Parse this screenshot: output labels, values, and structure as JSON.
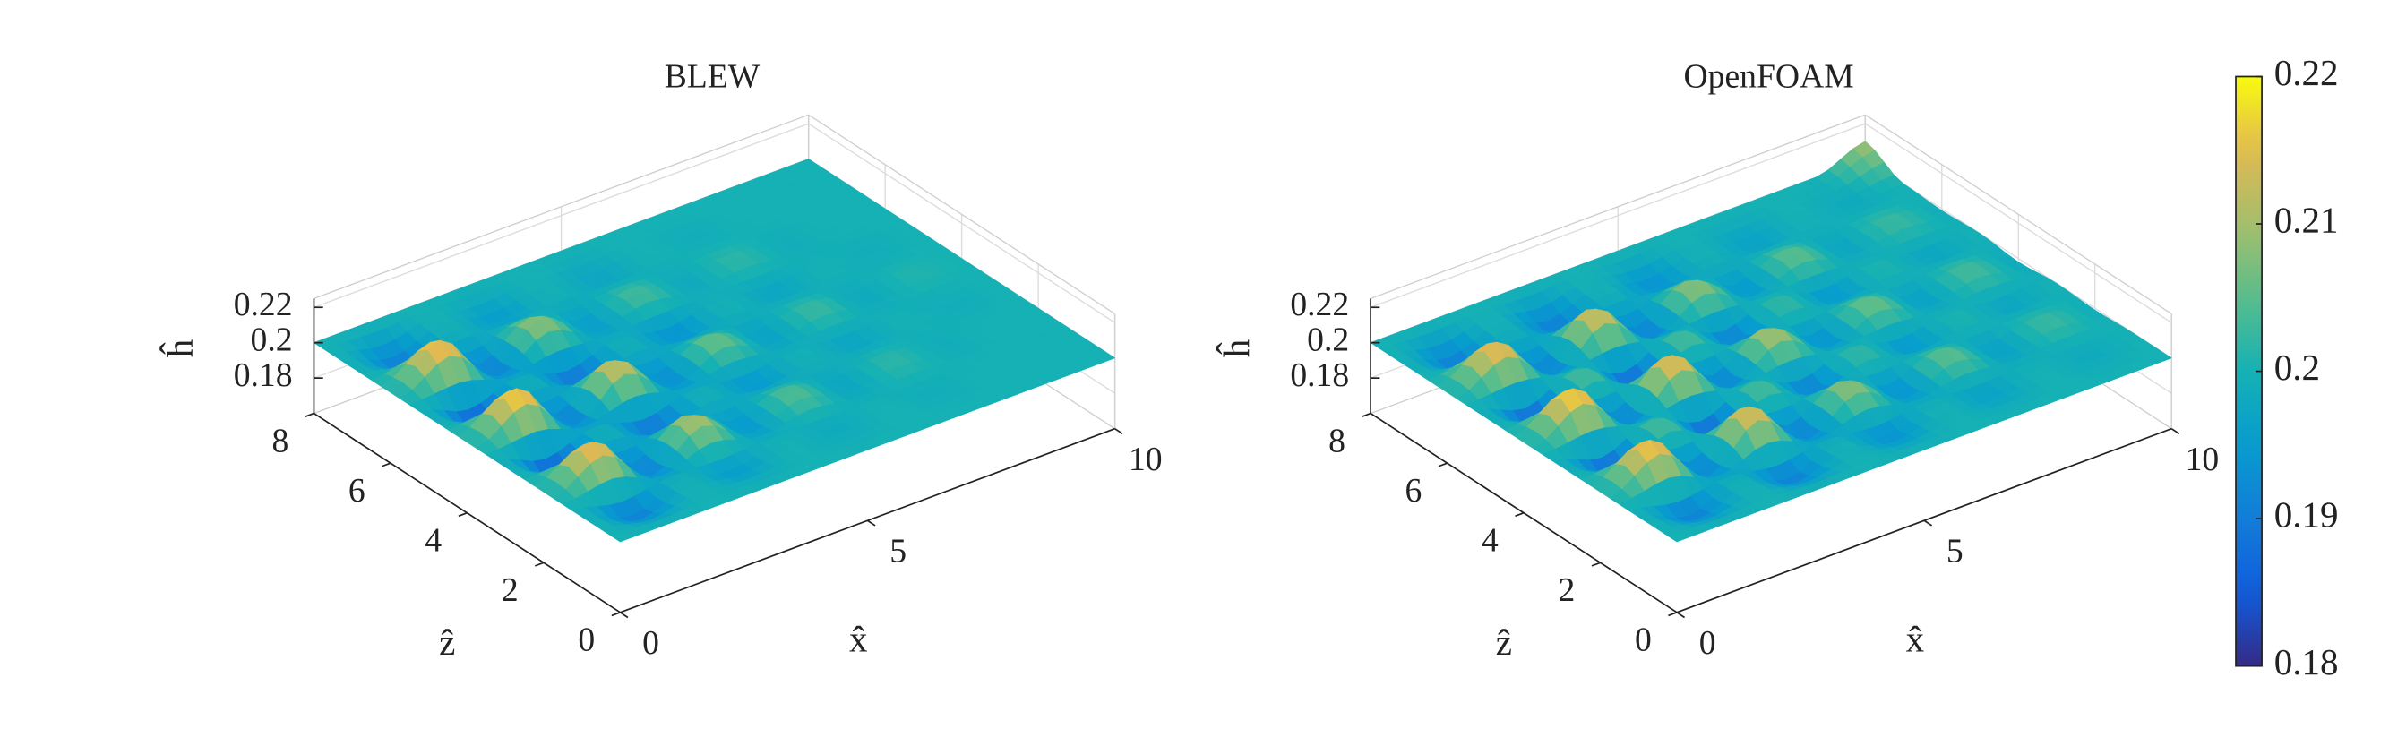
{
  "chart_data": [
    {
      "type": "surface",
      "title": "BLEW",
      "xlabel": "x̂",
      "ylabel": "ẑ",
      "zlabel": "ĥ",
      "x": [
        0,
        1,
        2,
        3,
        4,
        5,
        6,
        7,
        8,
        9,
        10
      ],
      "y": [
        0,
        1,
        2,
        3,
        4,
        5,
        6,
        7,
        8
      ],
      "values": [
        [
          0.2,
          0.2,
          0.2,
          0.2,
          0.2,
          0.2,
          0.2,
          0.2,
          0.2,
          0.2,
          0.2
        ],
        [
          0.2,
          0.19,
          0.2,
          0.195,
          0.2,
          0.198,
          0.2,
          0.199,
          0.2,
          0.2,
          0.2
        ],
        [
          0.2,
          0.218,
          0.19,
          0.212,
          0.194,
          0.205,
          0.197,
          0.202,
          0.199,
          0.2,
          0.2
        ],
        [
          0.2,
          0.185,
          0.2,
          0.188,
          0.2,
          0.194,
          0.2,
          0.197,
          0.2,
          0.199,
          0.2
        ],
        [
          0.2,
          0.22,
          0.19,
          0.215,
          0.192,
          0.207,
          0.196,
          0.203,
          0.198,
          0.201,
          0.2
        ],
        [
          0.2,
          0.185,
          0.2,
          0.188,
          0.2,
          0.193,
          0.2,
          0.197,
          0.2,
          0.199,
          0.2
        ],
        [
          0.2,
          0.219,
          0.19,
          0.21,
          0.195,
          0.204,
          0.198,
          0.202,
          0.199,
          0.2,
          0.2
        ],
        [
          0.2,
          0.19,
          0.2,
          0.195,
          0.2,
          0.197,
          0.2,
          0.199,
          0.2,
          0.2,
          0.2
        ],
        [
          0.2,
          0.2,
          0.2,
          0.2,
          0.2,
          0.2,
          0.2,
          0.2,
          0.2,
          0.2,
          0.2
        ]
      ],
      "xlim": [
        0,
        10
      ],
      "ylim": [
        0,
        8
      ],
      "zlim": [
        0.16,
        0.225
      ],
      "xticks": [
        0,
        5,
        10
      ],
      "yticks": [
        0,
        2,
        4,
        6,
        8
      ],
      "zticks": [
        0.18,
        0.2,
        0.22
      ],
      "colormap": "parula",
      "clim": [
        0.18,
        0.22
      ],
      "grid": true
    },
    {
      "type": "surface",
      "title": "OpenFOAM",
      "xlabel": "x̂",
      "ylabel": "ẑ",
      "zlabel": "ĥ",
      "x": [
        0,
        1,
        2,
        3,
        4,
        5,
        6,
        7,
        8,
        9,
        10
      ],
      "y": [
        0,
        1,
        2,
        3,
        4,
        5,
        6,
        7,
        8
      ],
      "values": [
        [
          0.2,
          0.2,
          0.2,
          0.2,
          0.2,
          0.2,
          0.2,
          0.2,
          0.2,
          0.2,
          0.2
        ],
        [
          0.2,
          0.19,
          0.2,
          0.19,
          0.2,
          0.193,
          0.2,
          0.196,
          0.2,
          0.198,
          0.2
        ],
        [
          0.2,
          0.219,
          0.19,
          0.217,
          0.19,
          0.21,
          0.193,
          0.206,
          0.196,
          0.203,
          0.199
        ],
        [
          0.2,
          0.186,
          0.205,
          0.186,
          0.205,
          0.19,
          0.203,
          0.194,
          0.201,
          0.197,
          0.2
        ],
        [
          0.2,
          0.22,
          0.19,
          0.218,
          0.19,
          0.212,
          0.193,
          0.207,
          0.196,
          0.204,
          0.198
        ],
        [
          0.2,
          0.186,
          0.205,
          0.186,
          0.205,
          0.19,
          0.203,
          0.194,
          0.201,
          0.197,
          0.2
        ],
        [
          0.2,
          0.218,
          0.19,
          0.216,
          0.19,
          0.21,
          0.194,
          0.206,
          0.197,
          0.203,
          0.199
        ],
        [
          0.2,
          0.19,
          0.2,
          0.19,
          0.2,
          0.193,
          0.2,
          0.196,
          0.2,
          0.198,
          0.2
        ],
        [
          0.2,
          0.2,
          0.2,
          0.2,
          0.2,
          0.2,
          0.2,
          0.2,
          0.2,
          0.2,
          0.21
        ]
      ],
      "xlim": [
        0,
        10
      ],
      "ylim": [
        0,
        8
      ],
      "zlim": [
        0.16,
        0.225
      ],
      "xticks": [
        0,
        5,
        10
      ],
      "yticks": [
        0,
        2,
        4,
        6,
        8
      ],
      "zticks": [
        0.18,
        0.2,
        0.22
      ],
      "colormap": "parula",
      "clim": [
        0.18,
        0.22
      ],
      "grid": true,
      "colorbar_ticks": [
        0.18,
        0.19,
        0.2,
        0.21,
        0.22
      ]
    }
  ]
}
